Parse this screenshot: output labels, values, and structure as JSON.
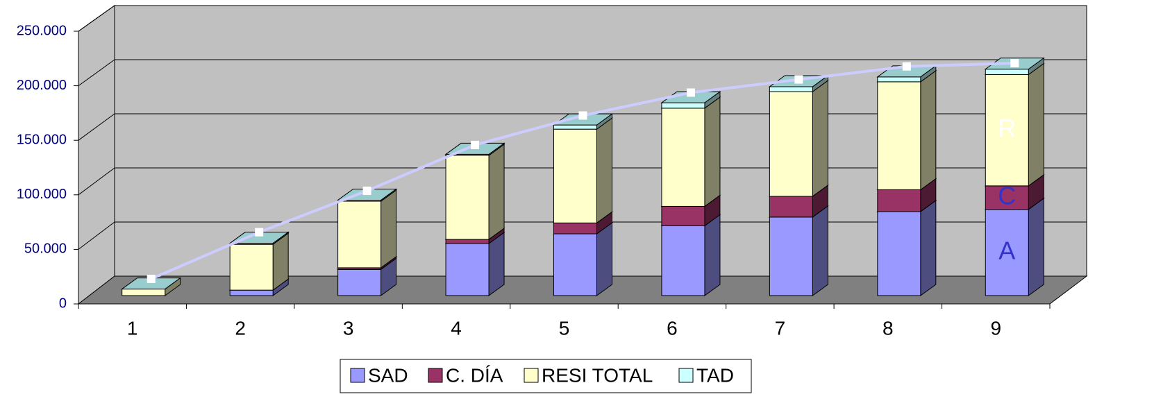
{
  "chart_data": {
    "type": "bar3d_stacked",
    "categories": [
      "1",
      "2",
      "3",
      "4",
      "5",
      "6",
      "7",
      "8",
      "9"
    ],
    "series": [
      {
        "name": "SAD",
        "color": "#9999ff",
        "values": [
          0,
          5000,
          24000,
          47700,
          56600,
          64000,
          72000,
          77000,
          79000
        ]
      },
      {
        "name": "C. DÍA",
        "color": "#993366",
        "values": [
          0,
          0,
          1500,
          3800,
          10000,
          17800,
          19000,
          20000,
          21600
        ]
      },
      {
        "name": "RESI TOTAL",
        "color": "#ffffcc",
        "values": [
          6000,
          42000,
          61000,
          77000,
          86000,
          90000,
          96000,
          99000,
          102000
        ]
      },
      {
        "name": "TAD",
        "color": "#ccffff",
        "values": [
          0,
          1000,
          1000,
          1000,
          3800,
          5000,
          4500,
          4500,
          5000
        ]
      }
    ],
    "line": {
      "color": "#ccccff",
      "values": [
        10200,
        53000,
        91000,
        133000,
        160000,
        181000,
        193000,
        205000,
        208000
      ]
    },
    "annotations": [
      {
        "text": "A",
        "color": "#3333cc"
      },
      {
        "text": "C",
        "color": "#3333cc"
      },
      {
        "text": "R",
        "color": "#ffffff"
      }
    ],
    "ylim": [
      0,
      250000
    ],
    "yticks": [
      0,
      {
        "value": 50000,
        "label": "50.000"
      },
      {
        "value": 100000,
        "label": "100.000"
      },
      {
        "value": 150000,
        "label": "150.000"
      },
      {
        "value": 200000,
        "label": "200.000"
      },
      {
        "value": 250000,
        "label": "250.000"
      }
    ],
    "grid": true,
    "legend": "bottom"
  }
}
